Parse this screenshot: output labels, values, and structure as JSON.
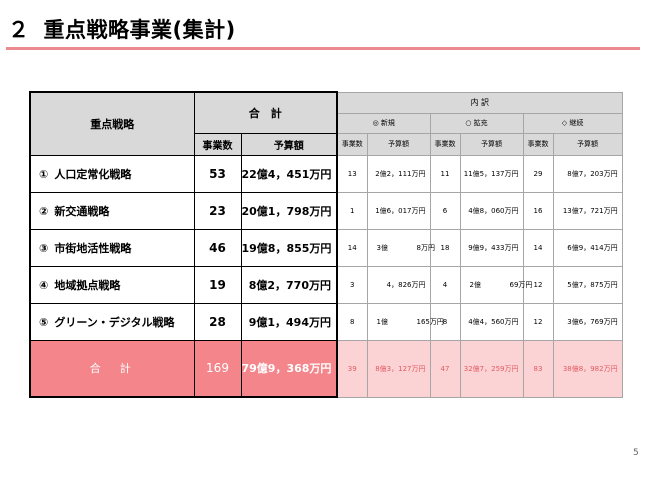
{
  "page": {
    "title_number": "２",
    "title_text": "重点戦略事業(集計)",
    "slide_number": "5"
  },
  "table": {
    "headers": {
      "strategy": "重点戦略",
      "total_group": "合　計",
      "count": "事業数",
      "budget": "予算額",
      "breakdown": "内 訳",
      "new": "◎ 新規",
      "expand": "○ 拡充",
      "continue": "◇ 継続",
      "sub_count": "事業数",
      "sub_budget": "予算額"
    },
    "rows": [
      {
        "marker": "①",
        "name": "人口定常化戦略",
        "count": "53",
        "budget": "22億4，451万円",
        "new_count": "13",
        "new_budget": "2億2，111万円",
        "exp_count": "11",
        "exp_budget": "11億5，137万円",
        "cont_count": "29",
        "cont_budget": "8億7，203万円"
      },
      {
        "marker": "②",
        "name": "新交通戦略",
        "count": "23",
        "budget": "20億1，798万円",
        "new_count": "1",
        "new_budget": "1億6，017万円",
        "exp_count": "6",
        "exp_budget": "4億8，060万円",
        "cont_count": "16",
        "cont_budget": "13億7，721万円"
      },
      {
        "marker": "③",
        "name": "市街地活性戦略",
        "count": "46",
        "budget": "19億8，855万円",
        "new_count": "14",
        "new_budget_a": "3億",
        "new_budget_b": "8万円",
        "exp_count": "18",
        "exp_budget": "9億9，433万円",
        "cont_count": "14",
        "cont_budget": "6億9，414万円"
      },
      {
        "marker": "④",
        "name": "地域拠点戦略",
        "count": "19",
        "budget": "8億2，770万円",
        "new_count": "3",
        "new_budget": "4，826万円",
        "exp_count": "4",
        "exp_budget_a": "2億",
        "exp_budget_b": "69万円",
        "cont_count": "12",
        "cont_budget": "5億7，875万円"
      },
      {
        "marker": "⑤",
        "name": "グリーン・デジタル戦略",
        "count": "28",
        "budget": "9億1，494万円",
        "new_count": "8",
        "new_budget_a": "1億",
        "new_budget_b": "165万円",
        "exp_count": "8",
        "exp_budget": "4億4，560万円",
        "cont_count": "12",
        "cont_budget": "3億6，769万円"
      }
    ],
    "total": {
      "label": "合　計",
      "count": "169",
      "budget": "79億9，368万円",
      "new_count": "39",
      "new_budget": "8億3，127万円",
      "exp_count": "47",
      "exp_budget": "32億7，259万円",
      "cont_count": "83",
      "cont_budget": "38億8，982万円"
    }
  }
}
